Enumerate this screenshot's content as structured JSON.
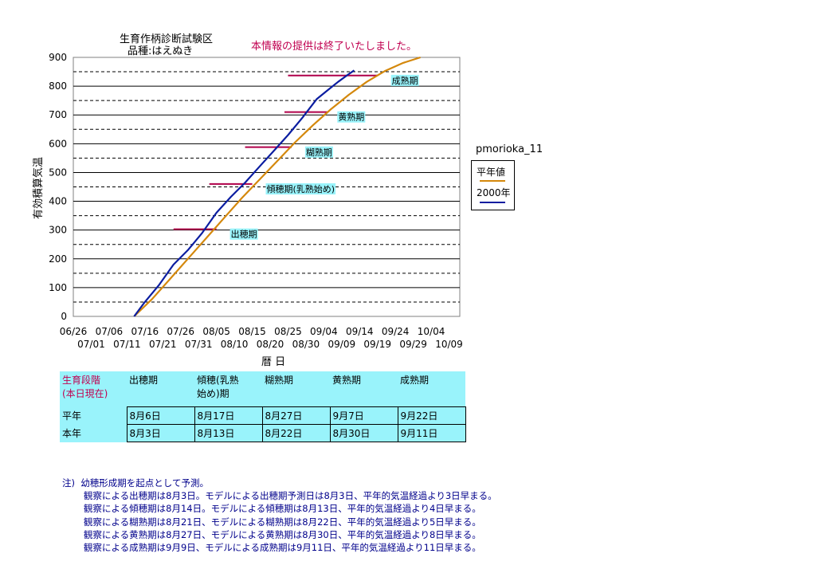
{
  "header": {
    "title_line1": "生育作柄診断試験区",
    "title_line2": "品種:はえぬき",
    "notice": "本情報の提供は終了いたしました。"
  },
  "chart_data": {
    "type": "line",
    "ylabel": "有効積算気温",
    "xlabel": "暦 日",
    "ylim": [
      0,
      900
    ],
    "yticks": [
      0,
      100,
      200,
      300,
      400,
      500,
      600,
      700,
      800,
      900
    ],
    "x_start": "06/26",
    "xlim_days": [
      0,
      108
    ],
    "xticks_top": [
      "06/26",
      "07/06",
      "07/16",
      "07/26",
      "08/05",
      "08/15",
      "08/25",
      "09/04",
      "09/14",
      "09/24",
      "10/04"
    ],
    "xticks_bottom": [
      "07/01",
      "07/11",
      "07/21",
      "07/31",
      "08/10",
      "08/20",
      "08/30",
      "09/09",
      "09/19",
      "09/29",
      "10/09"
    ],
    "grid": true,
    "station": "pmorioka_11",
    "series": [
      {
        "name": "平年値",
        "color": "#d4880c",
        "points": [
          [
            17,
            0
          ],
          [
            22,
            60
          ],
          [
            27,
            130
          ],
          [
            32,
            200
          ],
          [
            37,
            270
          ],
          [
            42,
            340
          ],
          [
            47,
            410
          ],
          [
            52,
            475
          ],
          [
            57,
            540
          ],
          [
            62,
            605
          ],
          [
            67,
            665
          ],
          [
            72,
            720
          ],
          [
            77,
            770
          ],
          [
            82,
            815
          ],
          [
            87,
            852
          ],
          [
            92,
            880
          ],
          [
            97,
            900
          ]
        ]
      },
      {
        "name": "2000年",
        "color": "#0b1da0",
        "points": [
          [
            17,
            0
          ],
          [
            20,
            50
          ],
          [
            24,
            110
          ],
          [
            28,
            180
          ],
          [
            32,
            230
          ],
          [
            36,
            290
          ],
          [
            40,
            360
          ],
          [
            44,
            415
          ],
          [
            48,
            465
          ],
          [
            52,
            520
          ],
          [
            56,
            575
          ],
          [
            60,
            630
          ],
          [
            64,
            690
          ],
          [
            68,
            755
          ],
          [
            71,
            785
          ],
          [
            74,
            815
          ],
          [
            77,
            842
          ],
          [
            78.5,
            855
          ]
        ]
      }
    ],
    "stage_markers": [
      {
        "label": "出穂期",
        "y": 303,
        "x_from": 28,
        "x_to": 40,
        "label_x": 44,
        "label_y": 275
      },
      {
        "label": "傾穂期(乳熟始め)",
        "y": 460,
        "x_from": 38,
        "x_to": 50,
        "label_x": 54,
        "label_y": 432
      },
      {
        "label": "糊熟期",
        "y": 588,
        "x_from": 48,
        "x_to": 61,
        "label_x": 65,
        "label_y": 560
      },
      {
        "label": "黄熟期",
        "y": 710,
        "x_from": 59,
        "x_to": 71,
        "label_x": 74,
        "label_y": 682
      },
      {
        "label": "成熟期",
        "y": 837,
        "x_from": 60,
        "x_to": 85,
        "label_x": 89,
        "label_y": 809
      }
    ],
    "marker_color": "#b0004a"
  },
  "stage_table": {
    "corner_line1": "生育段階",
    "corner_line2": "(本日現在)",
    "columns": [
      {
        "line1": "出穂期",
        "line2": ""
      },
      {
        "line1": "傾穂(乳熟",
        "line2": "始め)期"
      },
      {
        "line1": "糊熟期",
        "line2": ""
      },
      {
        "line1": "黄熟期",
        "line2": ""
      },
      {
        "line1": "成熟期",
        "line2": ""
      }
    ],
    "rows": [
      {
        "label": "平年",
        "values": [
          "8月6日",
          "8月17日",
          "8月27日",
          "9月7日",
          "9月22日"
        ]
      },
      {
        "label": "本年",
        "values": [
          "8月3日",
          "8月13日",
          "8月22日",
          "8月30日",
          "9月11日"
        ]
      }
    ]
  },
  "notes": {
    "prefix": "注)",
    "lines": [
      "幼穂形成期を起点として予測。",
      "観察による出穂期は8月3日。モデルによる出穂期予測日は8月3日、平年的気温経過より3日早まる。",
      "観察による傾穂期は8月14日。モデルによる傾穂期は8月13日、平年的気温経過より4日早まる。",
      "観察による糊熟期は8月21日、モデルによる糊熟期は8月22日、平年的気温経過より5日早まる。",
      "観察による黄熟期は8月27日、モデルによる黄熟期は8月30日、平年的気温経過より8日早まる。",
      "観察による成熟期は9月9日、モデルによる成熟期は9月11日、平年的気温経過より11日早まる。"
    ]
  }
}
